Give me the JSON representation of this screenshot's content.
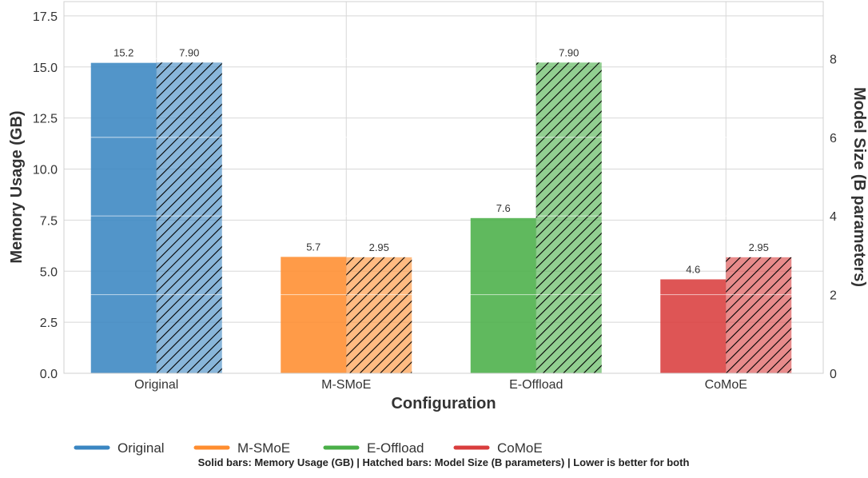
{
  "chart_data": {
    "type": "bar",
    "title": "",
    "xlabel": "Configuration",
    "ylabel": "Memory Usage (GB)",
    "y2label": "Model Size (B parameters)",
    "categories": [
      "Original",
      "M-SMoE",
      "E-Offload",
      "CoMoE"
    ],
    "colors": [
      "#3a86c2",
      "#ff8d2f",
      "#4aaf48",
      "#d93d3d"
    ],
    "series": [
      {
        "name": "Memory Usage (GB)",
        "axis": "left",
        "style": "solid",
        "values": [
          15.2,
          5.7,
          7.6,
          4.6
        ],
        "labels": [
          "15.2",
          "5.7",
          "7.6",
          "4.6"
        ]
      },
      {
        "name": "Model Size (B parameters)",
        "axis": "right",
        "style": "hatched",
        "values": [
          7.9,
          2.95,
          7.9,
          2.95
        ],
        "labels": [
          "7.90",
          "2.95",
          "7.90",
          "2.95"
        ]
      }
    ],
    "ylim": [
      0,
      18.2
    ],
    "yticks": [
      0.0,
      2.5,
      5.0,
      7.5,
      10.0,
      12.5,
      15.0,
      17.5
    ],
    "ytick_labels": [
      "0.0",
      "2.5",
      "5.0",
      "7.5",
      "10.0",
      "12.5",
      "15.0",
      "17.5"
    ],
    "y2lim": [
      0,
      9.45
    ],
    "y2ticks": [
      0,
      2,
      4,
      6,
      8
    ],
    "y2tick_labels": [
      "0",
      "2",
      "4",
      "6",
      "8"
    ],
    "grid": true,
    "legend": {
      "placement": "bottom",
      "entries": [
        "Original",
        "M-SMoE",
        "E-Offload",
        "CoMoE"
      ]
    },
    "footnote": "Solid bars: Memory Usage (GB) | Hatched bars: Model Size (B parameters) | Lower is better for both"
  }
}
